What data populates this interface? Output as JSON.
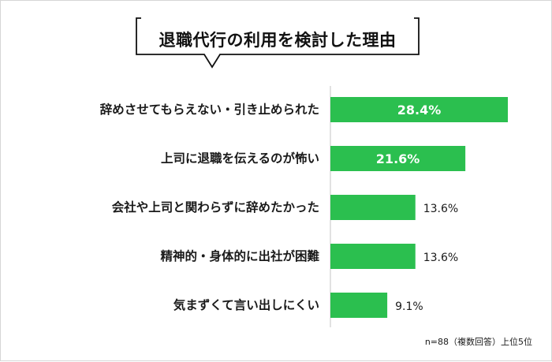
{
  "chart_data": {
    "type": "bar",
    "orientation": "horizontal",
    "title": "退職代行の利用を検討した理由",
    "categories": [
      "辞めさせてもらえない・引き止められた",
      "上司に退職を伝えるのが怖い",
      "会社や上司と関わらずに辞めたかった",
      "精神的・身体的に出社が困難",
      "気まずくて言い出しにくい"
    ],
    "values": [
      28.4,
      21.6,
      13.6,
      13.6,
      9.1
    ],
    "value_labels": [
      "28.4%",
      "21.6%",
      "13.6%",
      "13.6%",
      "9.1%"
    ],
    "unit": "%",
    "bar_color": "#2bbf4f",
    "grid": false,
    "note": "n=88（複数回答）上位5位"
  }
}
